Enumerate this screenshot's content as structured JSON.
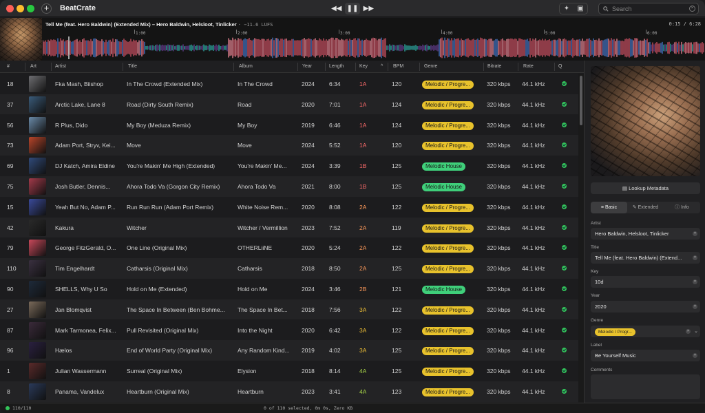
{
  "app": {
    "name": "BeatCrate",
    "new_tab": "+"
  },
  "transport": {
    "prev": "◀◀",
    "pause": "❚❚",
    "next": "▶▶"
  },
  "toolbar": {
    "wand_icon": "✦",
    "panel_icon": "▣"
  },
  "search": {
    "placeholder": "Search",
    "icon": "search-icon"
  },
  "now_playing": {
    "title": "Tell Me (feat. Hero Baldwin) (Extended Mix) – Hero Baldwin, Helsloot, Tinlicker",
    "lufs": "· −11.6 LUFS",
    "time": "0:15 / 6:28",
    "ticks": [
      "1:00",
      "2:00",
      "3:00",
      "4:00",
      "5:00",
      "6:00"
    ]
  },
  "table": {
    "headers": {
      "num": "#",
      "art": "Art",
      "artist": "Artist",
      "title": "Title",
      "album": "Album",
      "year": "Year",
      "length": "Length",
      "key": "Key",
      "sort": "^",
      "bpm": "BPM",
      "genre": "Genre",
      "bitrate": "Bitrate",
      "rate": "Rate",
      "q": "Q"
    },
    "rows": [
      {
        "num": "18",
        "artist": "Fka Mash, Biishop",
        "title": "In The Crowd (Extended Mix)",
        "album": "In The Crowd",
        "year": "2024",
        "length": "6:34",
        "key": "1A",
        "bpm": "120",
        "genre": "Melodic / Progre...",
        "bitrate": "320 kbps",
        "rate": "44.1 kHz"
      },
      {
        "num": "37",
        "artist": "Arctic Lake, Lane 8",
        "title": "Road (Dirty South Remix)",
        "album": "Road",
        "year": "2020",
        "length": "7:01",
        "key": "1A",
        "bpm": "124",
        "genre": "Melodic / Progre...",
        "bitrate": "320 kbps",
        "rate": "44.1 kHz"
      },
      {
        "num": "56",
        "artist": "R Plus, Dido",
        "title": "My Boy (Meduza Remix)",
        "album": "My Boy",
        "year": "2019",
        "length": "6:46",
        "key": "1A",
        "bpm": "124",
        "genre": "Melodic / Progre...",
        "bitrate": "320 kbps",
        "rate": "44.1 kHz"
      },
      {
        "num": "73",
        "artist": "Adam Port, Stryv, Kei...",
        "title": "Move",
        "album": "Move",
        "year": "2024",
        "length": "5:52",
        "key": "1A",
        "bpm": "120",
        "genre": "Melodic / Progre...",
        "bitrate": "320 kbps",
        "rate": "44.1 kHz"
      },
      {
        "num": "69",
        "artist": "DJ Katch, Amira Eldine",
        "title": "You're Makin' Me High (Extended)",
        "album": "You're Makin' Me...",
        "year": "2024",
        "length": "3:39",
        "key": "1B",
        "bpm": "125",
        "genre": "Melodic House",
        "bitrate": "320 kbps",
        "rate": "44.1 kHz"
      },
      {
        "num": "75",
        "artist": "Josh Butler, Dennis...",
        "title": "Ahora Todo Va (Gorgon City Remix)",
        "album": "Ahora Todo Va",
        "year": "2021",
        "length": "8:00",
        "key": "1B",
        "bpm": "125",
        "genre": "Melodic House",
        "bitrate": "320 kbps",
        "rate": "44.1 kHz"
      },
      {
        "num": "15",
        "artist": "Yeah But No, Adam P...",
        "title": "Run Run Run (Adam Port Remix)",
        "album": "White Noise Rem...",
        "year": "2020",
        "length": "8:08",
        "key": "2A",
        "bpm": "122",
        "genre": "Melodic / Progre...",
        "bitrate": "320 kbps",
        "rate": "44.1 kHz"
      },
      {
        "num": "42",
        "artist": "Kakura",
        "title": "Witcher",
        "album": "Witcher / Vermillion",
        "year": "2023",
        "length": "7:52",
        "key": "2A",
        "bpm": "119",
        "genre": "Melodic / Progre...",
        "bitrate": "320 kbps",
        "rate": "44.1 kHz"
      },
      {
        "num": "79",
        "artist": "George FitzGerald, O...",
        "title": "One Line (Original Mix)",
        "album": "OTHERLiiNE",
        "year": "2020",
        "length": "5:24",
        "key": "2A",
        "bpm": "122",
        "genre": "Melodic / Progre...",
        "bitrate": "320 kbps",
        "rate": "44.1 kHz"
      },
      {
        "num": "110",
        "artist": "Tim Engelhardt",
        "title": "Catharsis (Original Mix)",
        "album": "Catharsis",
        "year": "2018",
        "length": "8:50",
        "key": "2A",
        "bpm": "125",
        "genre": "Melodic / Progre...",
        "bitrate": "320 kbps",
        "rate": "44.1 kHz"
      },
      {
        "num": "90",
        "artist": "SHELLS, Why U So",
        "title": "Hold on Me (Extended)",
        "album": "Hold on Me",
        "year": "2024",
        "length": "3:46",
        "key": "2B",
        "bpm": "121",
        "genre": "Melodic House",
        "bitrate": "320 kbps",
        "rate": "44.1 kHz"
      },
      {
        "num": "27",
        "artist": "Jan Blomqvist",
        "title": "The Space In Between (Ben Bohme...",
        "album": "The Space In Bet...",
        "year": "2018",
        "length": "7:56",
        "key": "3A",
        "bpm": "122",
        "genre": "Melodic / Progre...",
        "bitrate": "320 kbps",
        "rate": "44.1 kHz"
      },
      {
        "num": "87",
        "artist": "Mark Tarmonea, Felix...",
        "title": "Pull Revisited (Original Mix)",
        "album": "Into the Night",
        "year": "2020",
        "length": "6:42",
        "key": "3A",
        "bpm": "122",
        "genre": "Melodic / Progre...",
        "bitrate": "320 kbps",
        "rate": "44.1 kHz"
      },
      {
        "num": "96",
        "artist": "Hælos",
        "title": "End of World Party (Original Mix)",
        "album": "Any Random Kind...",
        "year": "2019",
        "length": "4:02",
        "key": "3A",
        "bpm": "125",
        "genre": "Melodic / Progre...",
        "bitrate": "320 kbps",
        "rate": "44.1 kHz"
      },
      {
        "num": "1",
        "artist": "Julian Wassermann",
        "title": "Surreal (Original Mix)",
        "album": "Elysion",
        "year": "2018",
        "length": "8:14",
        "key": "4A",
        "bpm": "125",
        "genre": "Melodic / Progre...",
        "bitrate": "320 kbps",
        "rate": "44.1 kHz"
      },
      {
        "num": "8",
        "artist": "Panama, Vandelux",
        "title": "Heartburn (Original Mix)",
        "album": "Heartburn",
        "year": "2023",
        "length": "3:41",
        "key": "4A",
        "bpm": "123",
        "genre": "Melodic / Progre...",
        "bitrate": "320 kbps",
        "rate": "44.1 kHz"
      }
    ]
  },
  "colors": {
    "key_1": "#ff6b6b",
    "key_2": "#ff9a5a",
    "key_3": "#f2c236",
    "key_4": "#a8d548",
    "genre_progressive": "#e8c22c",
    "genre_house": "#3fcf7a",
    "quality_ok": "#33c45a"
  },
  "panel": {
    "lookup": "Lookup Metadata",
    "tabs": [
      "Basic",
      "Extended",
      "Info"
    ],
    "fields": {
      "artist_label": "Artist",
      "artist": "Hero Baldwin, Helsloot, Tinlicker",
      "title_label": "Title",
      "title": "Tell Me (feat. Hero Baldwin) (Extend...",
      "key_label": "Key",
      "key": "10d",
      "year_label": "Year",
      "year": "2020",
      "genre_label": "Genre",
      "genre": "Melodic / Progr...",
      "label_label": "Label",
      "label": "Be Yourself Music",
      "comments_label": "Comments"
    }
  },
  "status": {
    "count": "110/110",
    "selection": "0 of 110 selected, 0m 0s, Zero KB"
  }
}
